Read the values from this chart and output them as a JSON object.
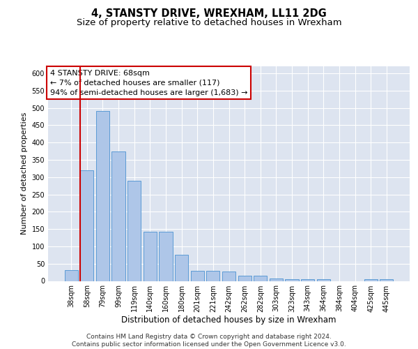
{
  "title": "4, STANSTY DRIVE, WREXHAM, LL11 2DG",
  "subtitle": "Size of property relative to detached houses in Wrexham",
  "xlabel": "Distribution of detached houses by size in Wrexham",
  "ylabel": "Number of detached properties",
  "categories": [
    "38sqm",
    "58sqm",
    "79sqm",
    "99sqm",
    "119sqm",
    "140sqm",
    "160sqm",
    "180sqm",
    "201sqm",
    "221sqm",
    "242sqm",
    "262sqm",
    "282sqm",
    "303sqm",
    "323sqm",
    "343sqm",
    "364sqm",
    "384sqm",
    "404sqm",
    "425sqm",
    "445sqm"
  ],
  "values": [
    32,
    320,
    490,
    375,
    290,
    143,
    143,
    75,
    30,
    30,
    27,
    15,
    15,
    7,
    5,
    5,
    5,
    0,
    0,
    5,
    5
  ],
  "bar_color": "#aec6e8",
  "bar_edge_color": "#5b9bd5",
  "background_color": "#dde4f0",
  "grid_color": "#ffffff",
  "redline_x": 0.62,
  "annotation_box_text": "4 STANSTY DRIVE: 68sqm\n← 7% of detached houses are smaller (117)\n94% of semi-detached houses are larger (1,683) →",
  "annotation_box_color": "#ffffff",
  "annotation_box_edge_color": "#cc0000",
  "footer_text": "Contains HM Land Registry data © Crown copyright and database right 2024.\nContains public sector information licensed under the Open Government Licence v3.0.",
  "ylim": [
    0,
    620
  ],
  "yticks": [
    0,
    50,
    100,
    150,
    200,
    250,
    300,
    350,
    400,
    450,
    500,
    550,
    600
  ],
  "title_fontsize": 10.5,
  "subtitle_fontsize": 9.5,
  "tick_fontsize": 7,
  "ylabel_fontsize": 8,
  "xlabel_fontsize": 8.5,
  "footer_fontsize": 6.5,
  "annot_fontsize": 8
}
